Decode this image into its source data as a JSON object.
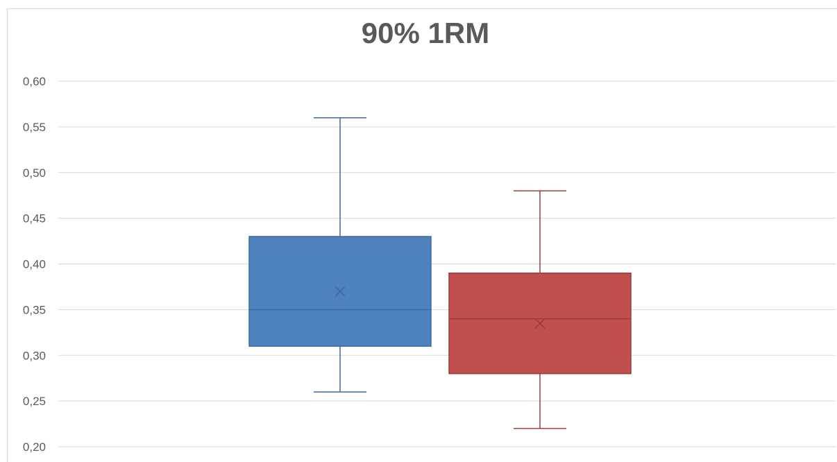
{
  "chart_data": {
    "type": "box",
    "title": "90% 1RM",
    "xlabel": "",
    "ylabel": "",
    "ylim": [
      0.2,
      0.6
    ],
    "yticks": [
      0.2,
      0.25,
      0.3,
      0.35,
      0.4,
      0.45,
      0.5,
      0.55,
      0.6
    ],
    "ytick_labels": [
      "0,20",
      "0,25",
      "0,30",
      "0,35",
      "0,40",
      "0,45",
      "0,50",
      "0,55",
      "0,60"
    ],
    "grid": true,
    "legend": "none",
    "series": [
      {
        "color": "#4f81bd",
        "edge": "#3c6aa0",
        "min": 0.26,
        "q1": 0.31,
        "median": 0.35,
        "q3": 0.43,
        "max": 0.56,
        "mean": 0.37
      },
      {
        "color": "#c0504d",
        "edge": "#9c3b38",
        "min": 0.22,
        "q1": 0.28,
        "median": 0.34,
        "q3": 0.39,
        "max": 0.48,
        "mean": 0.335
      }
    ]
  }
}
